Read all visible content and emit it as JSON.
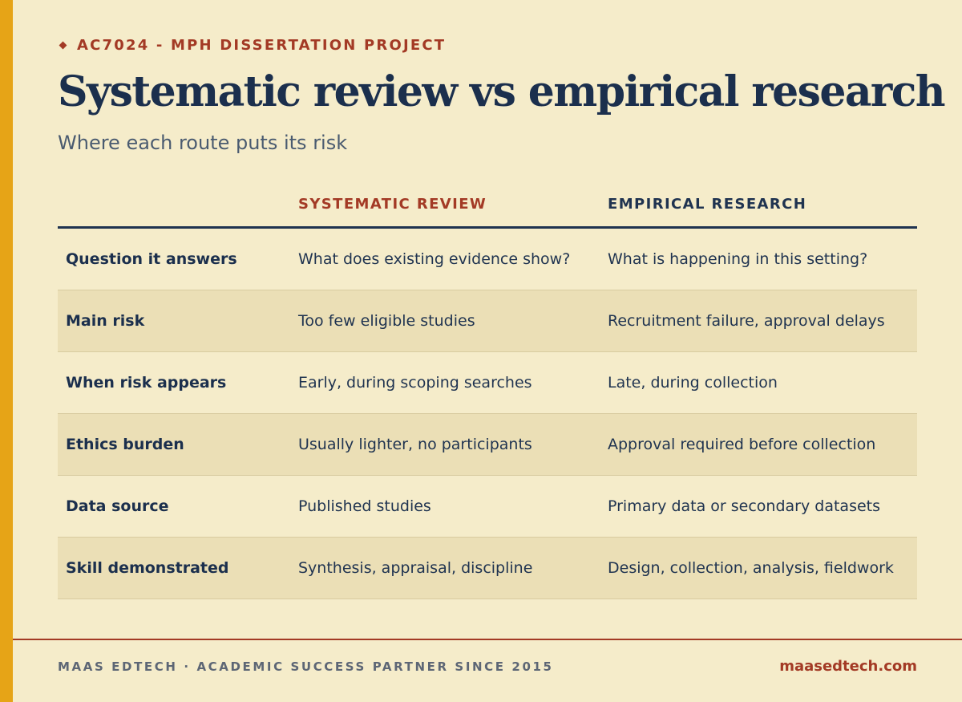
{
  "header": {
    "eyebrow": "AC7024 - MPH DISSERTATION PROJECT",
    "title": "Systematic review vs empirical research",
    "subtitle": "Where each route puts its risk"
  },
  "table": {
    "columns": [
      "",
      "SYSTEMATIC REVIEW",
      "EMPIRICAL RESEARCH"
    ],
    "rows": [
      {
        "label": "Question it answers",
        "systematic": "What does existing evidence show?",
        "empirical": "What is happening in this setting?"
      },
      {
        "label": "Main risk",
        "systematic": "Too few eligible studies",
        "empirical": "Recruitment failure, approval delays"
      },
      {
        "label": "When risk appears",
        "systematic": "Early, during scoping searches",
        "empirical": "Late, during collection"
      },
      {
        "label": "Ethics burden",
        "systematic": "Usually lighter, no participants",
        "empirical": "Approval required before collection"
      },
      {
        "label": "Data source",
        "systematic": "Published studies",
        "empirical": "Primary data or secondary datasets"
      },
      {
        "label": "Skill demonstrated",
        "systematic": "Synthesis, appraisal, discipline",
        "empirical": "Design, collection, analysis, fieldwork"
      }
    ]
  },
  "footer": {
    "tagline": "MAAS EDTECH · ACADEMIC SUCCESS PARTNER SINCE 2015",
    "website": "maasedtech.com"
  },
  "colors": {
    "background": "#f5ecca",
    "accent_bar": "#e6a417",
    "brand_red": "#a33a25",
    "navy": "#1b2f4d",
    "alt_row": "#ebdfb6"
  }
}
